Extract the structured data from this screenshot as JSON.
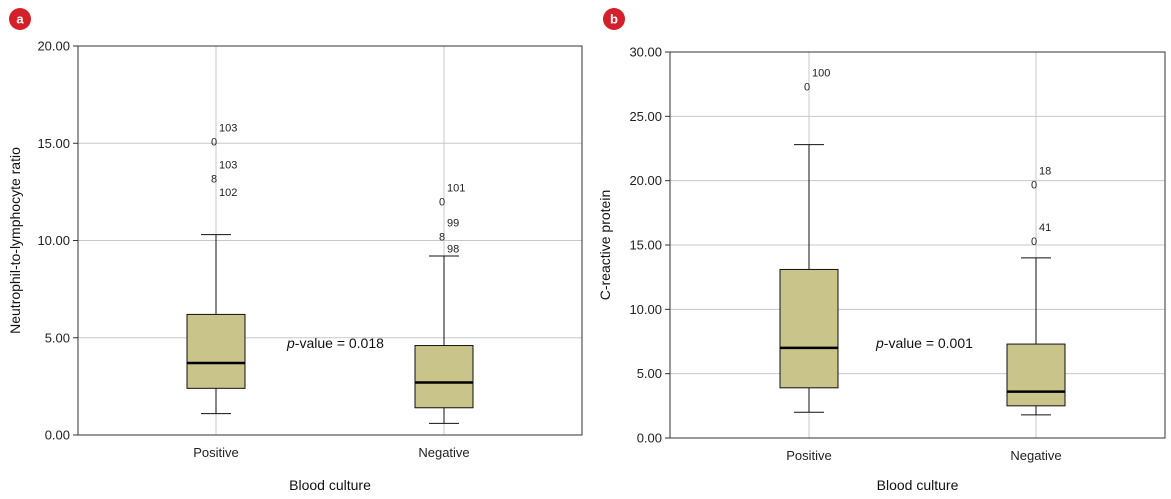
{
  "chart_data": [
    {
      "panel": "a",
      "type": "box",
      "xlabel": "Blood culture",
      "ylabel": "Neutrophil-to-lymphocyte ratio",
      "ylim": [
        0,
        20
      ],
      "yticks": [
        "0.00",
        "5.00",
        "10.00",
        "15.00",
        "20.00"
      ],
      "grid": true,
      "annotation": {
        "italic": "p",
        "text": "-value = 0.018"
      },
      "accent_color": "#d3202a",
      "box_color": "#c8c48a",
      "categories": [
        "Positive",
        "Negative"
      ],
      "boxes": [
        {
          "name": "Positive",
          "min": 1.1,
          "q1": 2.4,
          "median": 3.7,
          "q3": 6.2,
          "max": 10.3,
          "outliers": [
            {
              "value": 15.1,
              "marker": "0",
              "label": "103"
            },
            {
              "value": 13.2,
              "marker": "8",
              "label": "103"
            }
          ],
          "outlier_labels_extra": [
            {
              "value": 12.5,
              "label": "102"
            }
          ]
        },
        {
          "name": "Negative",
          "min": 0.6,
          "q1": 1.4,
          "median": 2.7,
          "q3": 4.6,
          "max": 9.2,
          "outliers": [
            {
              "value": 12.0,
              "marker": "0",
              "label": "101"
            },
            {
              "value": 10.2,
              "marker": "8",
              "label": "99"
            }
          ],
          "outlier_labels_extra": [
            {
              "value": 9.6,
              "label": "98"
            }
          ]
        }
      ]
    },
    {
      "panel": "b",
      "type": "box",
      "xlabel": "Blood culture",
      "ylabel": "C-reactive protein",
      "ylim": [
        0,
        30
      ],
      "yticks": [
        "0.00",
        "5.00",
        "10.00",
        "15.00",
        "20.00",
        "25.00",
        "30.00"
      ],
      "grid": true,
      "annotation": {
        "italic": "p",
        "text": "-value = 0.001"
      },
      "accent_color": "#d3202a",
      "box_color": "#c8c48a",
      "categories": [
        "Positive",
        "Negative"
      ],
      "boxes": [
        {
          "name": "Positive",
          "min": 2.0,
          "q1": 3.9,
          "median": 7.0,
          "q3": 13.1,
          "max": 22.8,
          "outliers": [
            {
              "value": 27.3,
              "marker": "0",
              "label": "100"
            }
          ],
          "outlier_labels_extra": []
        },
        {
          "name": "Negative",
          "min": 1.8,
          "q1": 2.5,
          "median": 3.6,
          "q3": 7.3,
          "max": 14.0,
          "outliers": [
            {
              "value": 19.7,
              "marker": "0",
              "label": "18"
            },
            {
              "value": 15.3,
              "marker": "0",
              "label": "41"
            }
          ],
          "outlier_labels_extra": []
        }
      ]
    }
  ]
}
